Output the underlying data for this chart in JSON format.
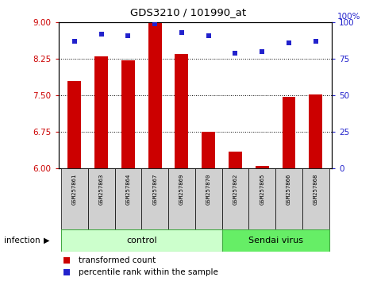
{
  "title": "GDS3210 / 101990_at",
  "samples": [
    "GSM257861",
    "GSM257863",
    "GSM257864",
    "GSM257867",
    "GSM257869",
    "GSM257870",
    "GSM257862",
    "GSM257865",
    "GSM257866",
    "GSM257868"
  ],
  "transformed_counts": [
    7.8,
    8.3,
    8.22,
    9.0,
    8.35,
    6.75,
    6.35,
    6.05,
    7.48,
    7.52
  ],
  "percentile_ranks": [
    87,
    92,
    91,
    99,
    93,
    91,
    79,
    80,
    86,
    87
  ],
  "ylim_left": [
    6,
    9
  ],
  "ylim_right": [
    0,
    100
  ],
  "yticks_left": [
    6,
    6.75,
    7.5,
    8.25,
    9
  ],
  "yticks_right": [
    0,
    25,
    50,
    75,
    100
  ],
  "bar_color": "#cc0000",
  "dot_color": "#2222cc",
  "infection_label": "infection",
  "legend_items": [
    "transformed count",
    "percentile rank within the sample"
  ],
  "n_control": 6,
  "n_virus": 4,
  "bar_bottom": 6.0,
  "ctrl_color": "#ccffcc",
  "virus_color": "#66ee66",
  "group_border_color": "#44aa44",
  "sample_box_color": "#d0d0d0",
  "tick_label_color_left": "#cc0000",
  "tick_label_color_right": "#2222cc"
}
